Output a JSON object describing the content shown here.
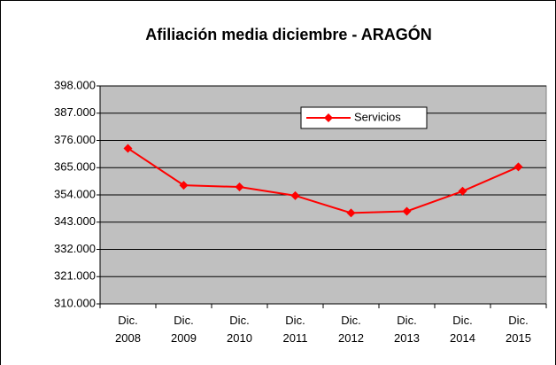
{
  "chart_data": {
    "type": "line",
    "title": "Afiliación media diciembre - ARAGÓN",
    "categories": [
      "Dic. 2008",
      "Dic. 2009",
      "Dic. 2010",
      "Dic. 2011",
      "Dic. 2012",
      "Dic. 2013",
      "Dic. 2014",
      "Dic. 2015"
    ],
    "series": [
      {
        "name": "Servicios",
        "color": "#ff0000",
        "values": [
          372800,
          357900,
          357200,
          353700,
          346700,
          347400,
          355500,
          365300
        ]
      }
    ],
    "ylim": [
      310000,
      398000
    ],
    "yticks": [
      {
        "value": 310000,
        "label": "310.000"
      },
      {
        "value": 321000,
        "label": "321.000"
      },
      {
        "value": 332000,
        "label": "332.000"
      },
      {
        "value": 343000,
        "label": "343.000"
      },
      {
        "value": 354000,
        "label": "354.000"
      },
      {
        "value": 365000,
        "label": "365.000"
      },
      {
        "value": 376000,
        "label": "376.000"
      },
      {
        "value": 387000,
        "label": "387.000"
      },
      {
        "value": 398000,
        "label": "398.000"
      }
    ],
    "grid": true,
    "legend": "top"
  }
}
